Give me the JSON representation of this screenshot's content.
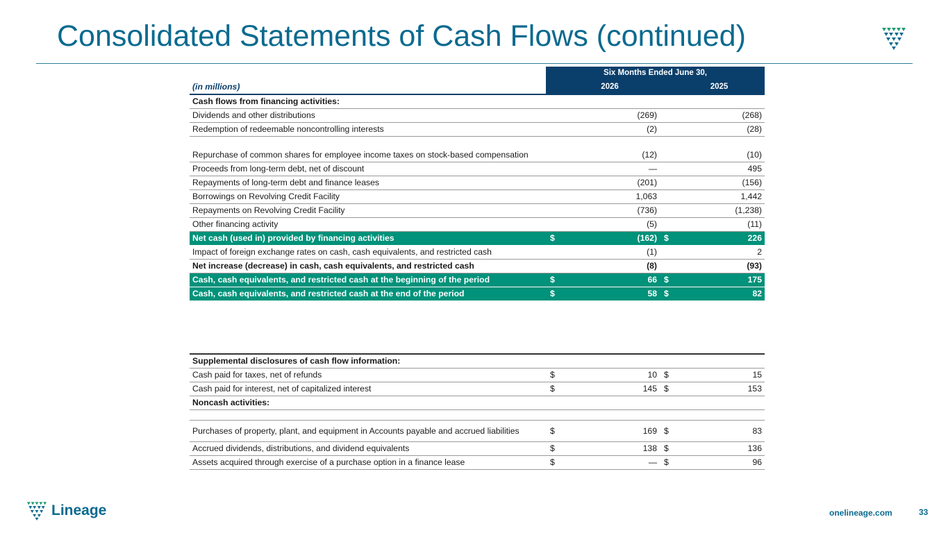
{
  "header": {
    "title": "Consolidated Statements of Cash Flows (continued)"
  },
  "table": {
    "units": "(in millions)",
    "period_header": "Six Months Ended June 30,",
    "col1": "2026",
    "col2": "2025",
    "rows": [
      {
        "label": "Cash flows from financing activities:",
        "v1": "",
        "v2": "",
        "style": "bold"
      },
      {
        "label": "Dividends and other distributions",
        "v1": "(269)",
        "v2": "(268)"
      },
      {
        "label": "Redemption of redeemable noncontrolling interests",
        "v1": "(2)",
        "v2": "(28)"
      },
      {
        "label": "Repurchase of common shares for employee income taxes on stock-based compensation",
        "v1": "(12)",
        "v2": "(10)",
        "style": "tall"
      },
      {
        "label": "Proceeds from long-term debt, net of discount",
        "v1": "—",
        "v2": "495"
      },
      {
        "label": "Repayments of long-term debt and finance leases",
        "v1": "(201)",
        "v2": "(156)"
      },
      {
        "label": "Borrowings on Revolving Credit Facility",
        "v1": "1,063",
        "v2": "1,442"
      },
      {
        "label": "Repayments on Revolving Credit Facility",
        "v1": "(736)",
        "v2": "(1,238)"
      },
      {
        "label": "Other financing activity",
        "v1": "(5)",
        "v2": "(11)"
      },
      {
        "label": "Net cash (used in) provided by financing activities",
        "d1": "$",
        "v1": "(162)",
        "d2": "$",
        "v2": "226",
        "style": "green"
      },
      {
        "label": "Impact of foreign exchange rates on cash, cash equivalents, and restricted cash",
        "v1": "(1)",
        "v2": "2"
      },
      {
        "label": "Net increase (decrease) in cash, cash equivalents, and restricted cash",
        "v1": "(8)",
        "v2": "(93)",
        "style": "bold"
      },
      {
        "label": "Cash, cash equivalents, and restricted cash at the beginning of the period",
        "d1": "$",
        "v1": "66",
        "d2": "$",
        "v2": "175",
        "style": "green"
      },
      {
        "label": "Cash, cash equivalents, and restricted cash at the end of the period",
        "d1": "$",
        "v1": "58",
        "d2": "$",
        "v2": "82",
        "style": "green"
      }
    ]
  },
  "supplemental": {
    "rows": [
      {
        "label": "Supplemental disclosures of cash flow information:",
        "v1": "",
        "v2": "",
        "style": "bold"
      },
      {
        "label": "Cash paid for taxes, net of refunds",
        "d1": "$",
        "v1": "10",
        "d2": "$",
        "v2": "15"
      },
      {
        "label": "Cash paid for interest, net of capitalized interest",
        "d1": "$",
        "v1": "145",
        "d2": "$",
        "v2": "153"
      },
      {
        "label": "Noncash activities:",
        "v1": "",
        "v2": "",
        "style": "bold"
      },
      {
        "label": "",
        "v1": "",
        "v2": "",
        "style": "blank"
      },
      {
        "label": "Purchases of property, plant, and equipment in Accounts payable and accrued liabilities",
        "d1": "$",
        "v1": "169",
        "d2": "$",
        "v2": "83",
        "style": "post"
      },
      {
        "label": "Accrued dividends, distributions, and dividend equivalents",
        "d1": "$",
        "v1": "138",
        "d2": "$",
        "v2": "136"
      },
      {
        "label": "Assets acquired through exercise of a purchase option in a finance lease",
        "d1": "$",
        "v1": "—",
        "d2": "$",
        "v2": "96"
      }
    ]
  },
  "footer": {
    "brand": "Lineage",
    "website": "onelineage.com",
    "page_number": "33"
  },
  "colors": {
    "title_blue": "#0b6a8f",
    "header_navy": "#0b3f6b",
    "highlight_green": "#00927a",
    "logo_green": "#1f9b6f",
    "logo_teal": "#0b6a8f"
  },
  "icons": {
    "logo": "lineage-chevron-logo-icon"
  }
}
